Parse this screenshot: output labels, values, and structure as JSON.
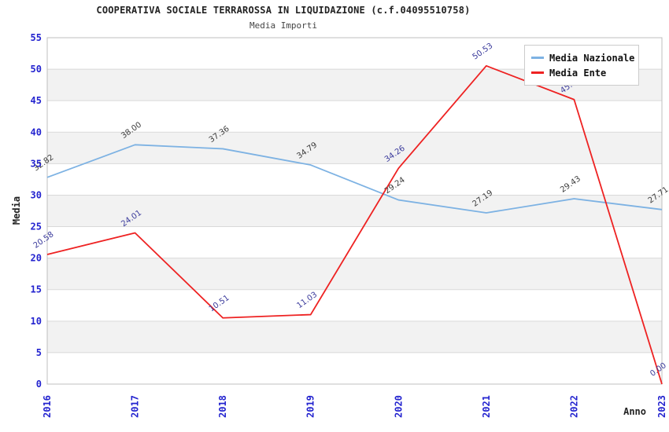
{
  "chart_data": {
    "type": "line",
    "title": "COOPERATIVA SOCIALE TERRAROSSA IN LIQUIDAZIONE (c.f.04095510758)",
    "subtitle": "Media Importi",
    "xlabel": "Anno",
    "ylabel": "Media",
    "categories": [
      "2016",
      "2017",
      "2018",
      "2019",
      "2020",
      "2021",
      "2022",
      "2023"
    ],
    "series": [
      {
        "name": "Media Nazionale",
        "color": "#7db2e3",
        "label_color": "#3c3c3c",
        "values": [
          32.82,
          38.0,
          37.36,
          34.79,
          29.24,
          27.19,
          29.43,
          27.71
        ]
      },
      {
        "name": "Media Ente",
        "color": "#ee2222",
        "label_color": "#39399b",
        "values": [
          20.58,
          24.01,
          10.51,
          11.03,
          34.26,
          50.53,
          45.18,
          0.0
        ]
      }
    ],
    "ylim": [
      0,
      55
    ],
    "ytick_interval": 5,
    "legend_position": "top-right",
    "grid": true,
    "styles": {
      "tick_label_color": "#2323cf",
      "band_color": "#f2f2f2",
      "grid_color": "#d9d9d9",
      "border_color": "#bfbfbf",
      "value_label_decimals": 2
    }
  }
}
